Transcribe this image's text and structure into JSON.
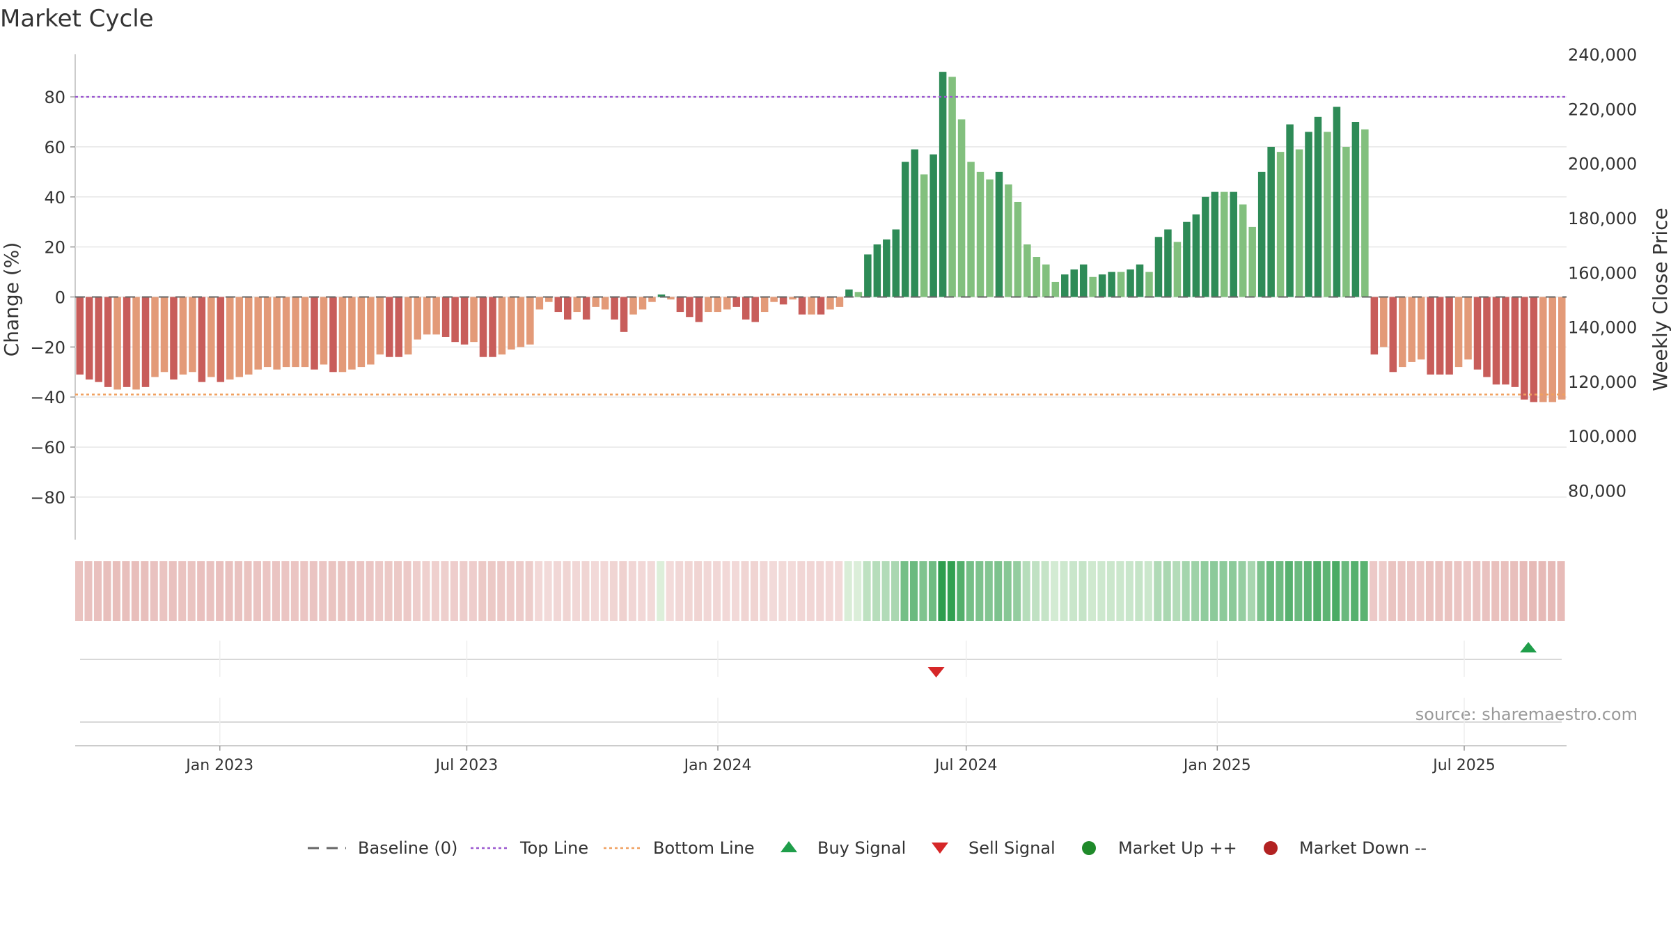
{
  "chart_data": {
    "type": "bar",
    "title": "Market Cycle",
    "ylabel_left": "Change (%)",
    "ylabel_right": "Weekly Close Price",
    "source_text": "source: sharemaestro.com",
    "left_axis": {
      "range": [
        -97,
        97
      ],
      "ticks": [
        80,
        60,
        40,
        20,
        0,
        -20,
        -40,
        -60,
        -80
      ],
      "tick_labels": [
        "80",
        "60",
        "40",
        "20",
        "0",
        "−20",
        "−40",
        "−60",
        "−80"
      ]
    },
    "right_axis": {
      "range": [
        62000,
        240000
      ],
      "ticks": [
        240000,
        220000,
        200000,
        180000,
        160000,
        140000,
        120000,
        100000,
        80000
      ],
      "tick_labels": [
        "240,000",
        "220,000",
        "200,000",
        "180,000",
        "160,000",
        "140,000",
        "120,000",
        "100,000",
        "80,000"
      ]
    },
    "x_axis": {
      "start": "2022-09-17",
      "end": "2025-09-14",
      "ticks": [
        "2023-01-01",
        "2023-07-01",
        "2024-01-01",
        "2024-07-01",
        "2025-01-01",
        "2025-07-01"
      ],
      "tick_labels": [
        "Jan 2023",
        "Jul 2023",
        "Jan 2024",
        "Jul 2024",
        "Jan 2025",
        "Jul 2025"
      ]
    },
    "reference_lines": {
      "baseline": 0,
      "top_line": 80,
      "bottom_line": -39
    },
    "series": [
      {
        "values": [
          -31,
          -33,
          -34,
          -36,
          -37,
          -36,
          -37,
          -36,
          -32,
          -30,
          -33,
          -31,
          -30,
          -34,
          -32,
          -34,
          -33,
          -32,
          -31,
          -29,
          -28,
          -29,
          -28,
          -28,
          -28,
          -29,
          -27,
          -30,
          -30,
          -29,
          -28,
          -27,
          -23,
          -24,
          -24,
          -23,
          -17,
          -15,
          -15,
          -16,
          -18,
          -19,
          -18,
          -24,
          -24,
          -23,
          -21,
          -20,
          -19,
          -5,
          -2,
          -6,
          -9,
          -6,
          -9,
          -4,
          -5,
          -9,
          -14,
          -7,
          -5,
          -2,
          1,
          -1,
          -6,
          -8,
          -10,
          -6,
          -6,
          -5,
          -4,
          -9,
          -10,
          -6,
          -2,
          -3,
          -1,
          -7,
          -7,
          -7,
          -5,
          -4,
          3,
          2,
          17,
          21,
          23,
          27,
          54,
          59,
          49,
          57,
          90,
          88,
          71,
          54,
          50,
          47,
          50,
          45,
          38,
          21,
          16,
          13,
          6,
          9,
          11,
          13,
          8,
          9,
          10,
          10,
          11,
          13,
          10,
          24,
          27,
          22,
          30,
          33,
          40,
          42,
          42,
          42,
          37,
          28,
          50,
          60,
          58,
          69,
          59,
          66,
          72,
          66,
          76,
          60,
          70,
          67,
          -23,
          -20,
          -30,
          -28,
          -26,
          -25,
          -31,
          -31,
          -31,
          -28,
          -25,
          -29,
          -32,
          -35,
          -35,
          -36,
          -41,
          -42,
          -42,
          -42,
          -41
        ],
        "bar_colors": [
          "#c85d5a",
          "#c85d5a",
          "#c85d5a",
          "#c85d5a",
          "#e39a78",
          "#c85d5a",
          "#e39a78",
          "#c85d5a",
          "#e39a78",
          "#e39a78",
          "#c85d5a",
          "#e39a78",
          "#e39a78",
          "#c85d5a",
          "#e39a78",
          "#c85d5a",
          "#e39a78",
          "#e39a78",
          "#e39a78",
          "#e39a78",
          "#e39a78",
          "#e39a78",
          "#e39a78",
          "#e39a78",
          "#e39a78",
          "#c85d5a",
          "#e39a78",
          "#c85d5a",
          "#e39a78",
          "#e39a78",
          "#e39a78",
          "#e39a78",
          "#e39a78",
          "#c85d5a",
          "#c85d5a",
          "#e39a78",
          "#e39a78",
          "#e39a78",
          "#e39a78",
          "#c85d5a",
          "#c85d5a",
          "#c85d5a",
          "#e39a78",
          "#c85d5a",
          "#c85d5a",
          "#e39a78",
          "#e39a78",
          "#e39a78",
          "#e39a78",
          "#e39a78",
          "#e39a78",
          "#c85d5a",
          "#c85d5a",
          "#e39a78",
          "#c85d5a",
          "#e39a78",
          "#e39a78",
          "#c85d5a",
          "#c85d5a",
          "#e39a78",
          "#e39a78",
          "#e39a78",
          "#2e8b57",
          "#e39a78",
          "#c85d5a",
          "#c85d5a",
          "#c85d5a",
          "#e39a78",
          "#e39a78",
          "#e39a78",
          "#c85d5a",
          "#c85d5a",
          "#c85d5a",
          "#e39a78",
          "#e39a78",
          "#c85d5a",
          "#e39a78",
          "#c85d5a",
          "#e39a78",
          "#c85d5a",
          "#e39a78",
          "#e39a78",
          "#2e8b57",
          "#82c07e",
          "#2e8b57",
          "#2e8b57",
          "#2e8b57",
          "#2e8b57",
          "#2e8b57",
          "#2e8b57",
          "#82c07e",
          "#2e8b57",
          "#2e8b57",
          "#82c07e",
          "#82c07e",
          "#82c07e",
          "#82c07e",
          "#82c07e",
          "#2e8b57",
          "#82c07e",
          "#82c07e",
          "#82c07e",
          "#82c07e",
          "#82c07e",
          "#82c07e",
          "#2e8b57",
          "#2e8b57",
          "#2e8b57",
          "#82c07e",
          "#2e8b57",
          "#2e8b57",
          "#82c07e",
          "#2e8b57",
          "#2e8b57",
          "#82c07e",
          "#2e8b57",
          "#2e8b57",
          "#82c07e",
          "#2e8b57",
          "#2e8b57",
          "#2e8b57",
          "#2e8b57",
          "#82c07e",
          "#2e8b57",
          "#82c07e",
          "#82c07e",
          "#2e8b57",
          "#2e8b57",
          "#82c07e",
          "#2e8b57",
          "#82c07e",
          "#2e8b57",
          "#2e8b57",
          "#82c07e",
          "#2e8b57",
          "#82c07e",
          "#2e8b57",
          "#82c07e",
          "#c85d5a",
          "#e39a78",
          "#c85d5a",
          "#e39a78",
          "#e39a78",
          "#e39a78",
          "#c85d5a",
          "#c85d5a",
          "#c85d5a",
          "#e39a78",
          "#e39a78",
          "#c85d5a",
          "#c85d5a",
          "#c85d5a",
          "#c85d5a",
          "#c85d5a",
          "#c85d5a",
          "#c85d5a",
          "#e39a78",
          "#e39a78",
          "#e39a78"
        ]
      }
    ],
    "signals": {
      "sell": [
        {
          "x": "2024-06-09"
        }
      ],
      "buy": [
        {
          "x": "2025-08-17"
        }
      ]
    },
    "colors": {
      "up_strong": "#2e8b57",
      "up_light": "#82c07e",
      "down_strong": "#c85d5a",
      "down_light": "#e39a78",
      "top_line": "#9b59d0",
      "bottom_line": "#f0a060",
      "buy_signal": "#1f9e4a",
      "sell_signal": "#d62728",
      "market_up": "#1f8a2a",
      "market_down": "#b22222"
    },
    "legend": {
      "placement": "bottom-center",
      "items": [
        {
          "label": "Baseline (0)",
          "symbol": "dash-line"
        },
        {
          "label": "Top Line",
          "symbol": "dotted-purple-line"
        },
        {
          "label": "Bottom Line",
          "symbol": "dotted-orange-line"
        },
        {
          "label": "Buy Signal",
          "symbol": "up-triangle-icon"
        },
        {
          "label": "Sell Signal",
          "symbol": "down-triangle-icon"
        },
        {
          "label": "Market Up ++",
          "symbol": "green-circle-icon"
        },
        {
          "label": "Market Down --",
          "symbol": "red-circle-icon"
        }
      ]
    },
    "grid": true
  }
}
